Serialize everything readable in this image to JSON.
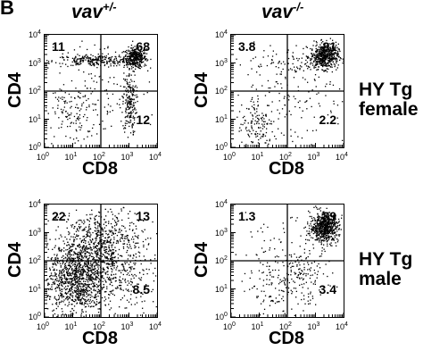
{
  "figure": {
    "panel_label": "B",
    "columns": [
      {
        "base": "vav",
        "sup": "+/-"
      },
      {
        "base": "vav",
        "sup": "-/-"
      }
    ],
    "rows": [
      {
        "line1": "HY Tg",
        "line2": "female"
      },
      {
        "line1": "HY Tg",
        "line2": "male"
      }
    ],
    "tick_base": "10",
    "tick_exponents": [
      "0",
      "1",
      "2",
      "3",
      "4"
    ]
  },
  "chart_data": [
    {
      "type": "scatter",
      "id": "vav_het_female",
      "xlabel": "CD8",
      "ylabel": "CD4",
      "x_scale": "log",
      "y_scale": "log",
      "xlim": [
        1,
        10000
      ],
      "ylim": [
        1,
        10000
      ],
      "quadrant_gate": {
        "x": 100,
        "y": 100
      },
      "quadrant_values": {
        "top_left": "11",
        "top_right": "68",
        "bottom_left": "",
        "bottom_right": "12"
      }
    },
    {
      "type": "scatter",
      "id": "vav_ko_female",
      "xlabel": "CD8",
      "ylabel": "CD4",
      "x_scale": "log",
      "y_scale": "log",
      "xlim": [
        1,
        10000
      ],
      "ylim": [
        1,
        10000
      ],
      "quadrant_gate": {
        "x": 100,
        "y": 100
      },
      "quadrant_values": {
        "top_left": "3.8",
        "top_right": "81",
        "bottom_left": "",
        "bottom_right": "2.2"
      }
    },
    {
      "type": "scatter",
      "id": "vav_het_male",
      "xlabel": "CD8",
      "ylabel": "CD4",
      "x_scale": "log",
      "y_scale": "log",
      "xlim": [
        1,
        10000
      ],
      "ylim": [
        1,
        10000
      ],
      "quadrant_gate": {
        "x": 100,
        "y": 100
      },
      "quadrant_values": {
        "top_left": "22",
        "top_right": "13",
        "bottom_left": "",
        "bottom_right": "8.5"
      }
    },
    {
      "type": "scatter",
      "id": "vav_ko_male",
      "xlabel": "CD8",
      "ylabel": "CD4",
      "x_scale": "log",
      "y_scale": "log",
      "xlim": [
        1,
        10000
      ],
      "ylim": [
        1,
        10000
      ],
      "quadrant_gate": {
        "x": 100,
        "y": 100
      },
      "quadrant_values": {
        "top_left": "1.3",
        "top_right": "89",
        "bottom_left": "",
        "bottom_right": "3.4"
      }
    }
  ]
}
